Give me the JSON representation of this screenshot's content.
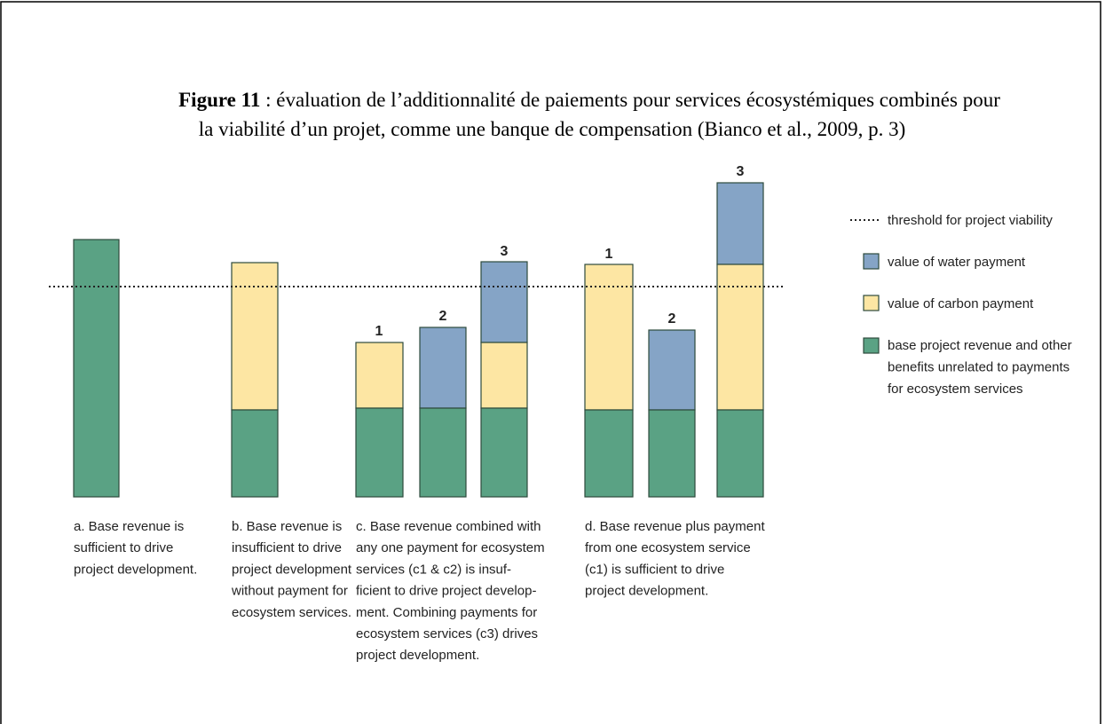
{
  "title": {
    "label": "Figure 11",
    "line1": " : évaluation de l’additionnalité de paiements pour services écosystémiques combinés pour",
    "line2": "la viabilité d’un projet, comme une banque de compensation (Bianco et al., 2009, p. 3)"
  },
  "bar_labels": [
    "1",
    "2",
    "3",
    "1",
    "2",
    "3"
  ],
  "legend": {
    "threshold": "threshold for project viability",
    "water": "value of water payment",
    "carbon": "value of carbon payment",
    "base": [
      "base project revenue and other",
      "benefits unrelated to payments",
      "for ecosystem services"
    ]
  },
  "captions": {
    "a": [
      "a. Base revenue is",
      "sufficient to drive",
      "project development."
    ],
    "b": [
      "b. Base revenue is",
      "insufficient to drive",
      "project development",
      "without payment for",
      "ecosystem services."
    ],
    "c": [
      "c. Base revenue combined with",
      "any one payment for ecosystem",
      "services (c1 & c2) is insuf-",
      "ficient to drive project develop-",
      "ment. Combining payments for",
      "ecosystem services (c3) drives",
      "project development."
    ],
    "d": [
      "d. Base revenue plus payment",
      "from one ecosystem service",
      "(c1) is sufficient to drive",
      "project development."
    ]
  }
}
